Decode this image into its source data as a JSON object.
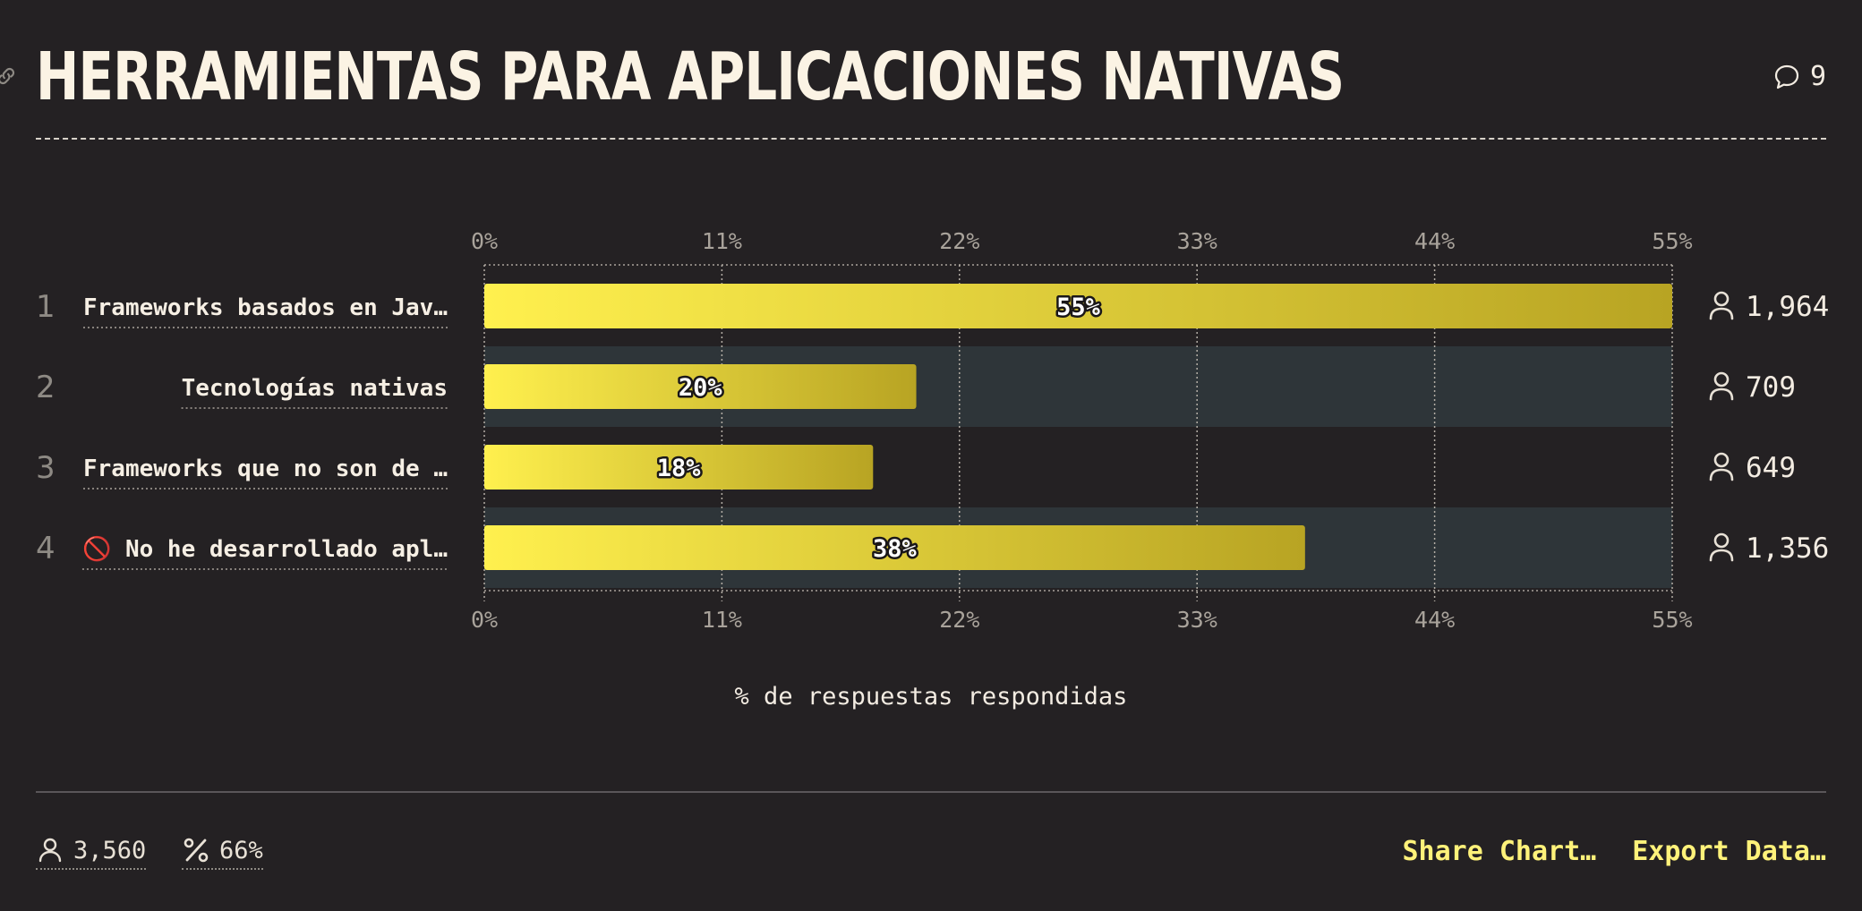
{
  "header": {
    "title": "HERRAMIENTAS PARA APLICACIONES NATIVAS",
    "comments_count": "9"
  },
  "chart_data": {
    "type": "bar",
    "orientation": "horizontal",
    "categories": [
      "Frameworks basados en Jav…",
      "Tecnologías nativas",
      "Frameworks que no son de …",
      "🚫 No he desarrollado apl…"
    ],
    "ranks": [
      "1",
      "2",
      "3",
      "4"
    ],
    "values": [
      55,
      20,
      18,
      38
    ],
    "value_labels": [
      "55%",
      "20%",
      "18%",
      "38%"
    ],
    "counts": [
      "1,964",
      "709",
      "649",
      "1,356"
    ],
    "xlim": [
      0,
      55
    ],
    "ticks": [
      "0%",
      "11%",
      "22%",
      "33%",
      "44%",
      "55%"
    ],
    "xlabel": "% de respuestas respondidas",
    "grid": true,
    "highlighted_rows": [
      1,
      3
    ]
  },
  "footer": {
    "total_respondents": "3,560",
    "response_rate": "66%",
    "share_label": "Share Chart…",
    "export_label": "Export Data…"
  },
  "colors": {
    "background": "#242123",
    "bar_gradient_start": "#fff04e",
    "bar_gradient_end": "#b8a423",
    "row_highlight": "#2e3539",
    "accent_link": "#fff27a"
  }
}
